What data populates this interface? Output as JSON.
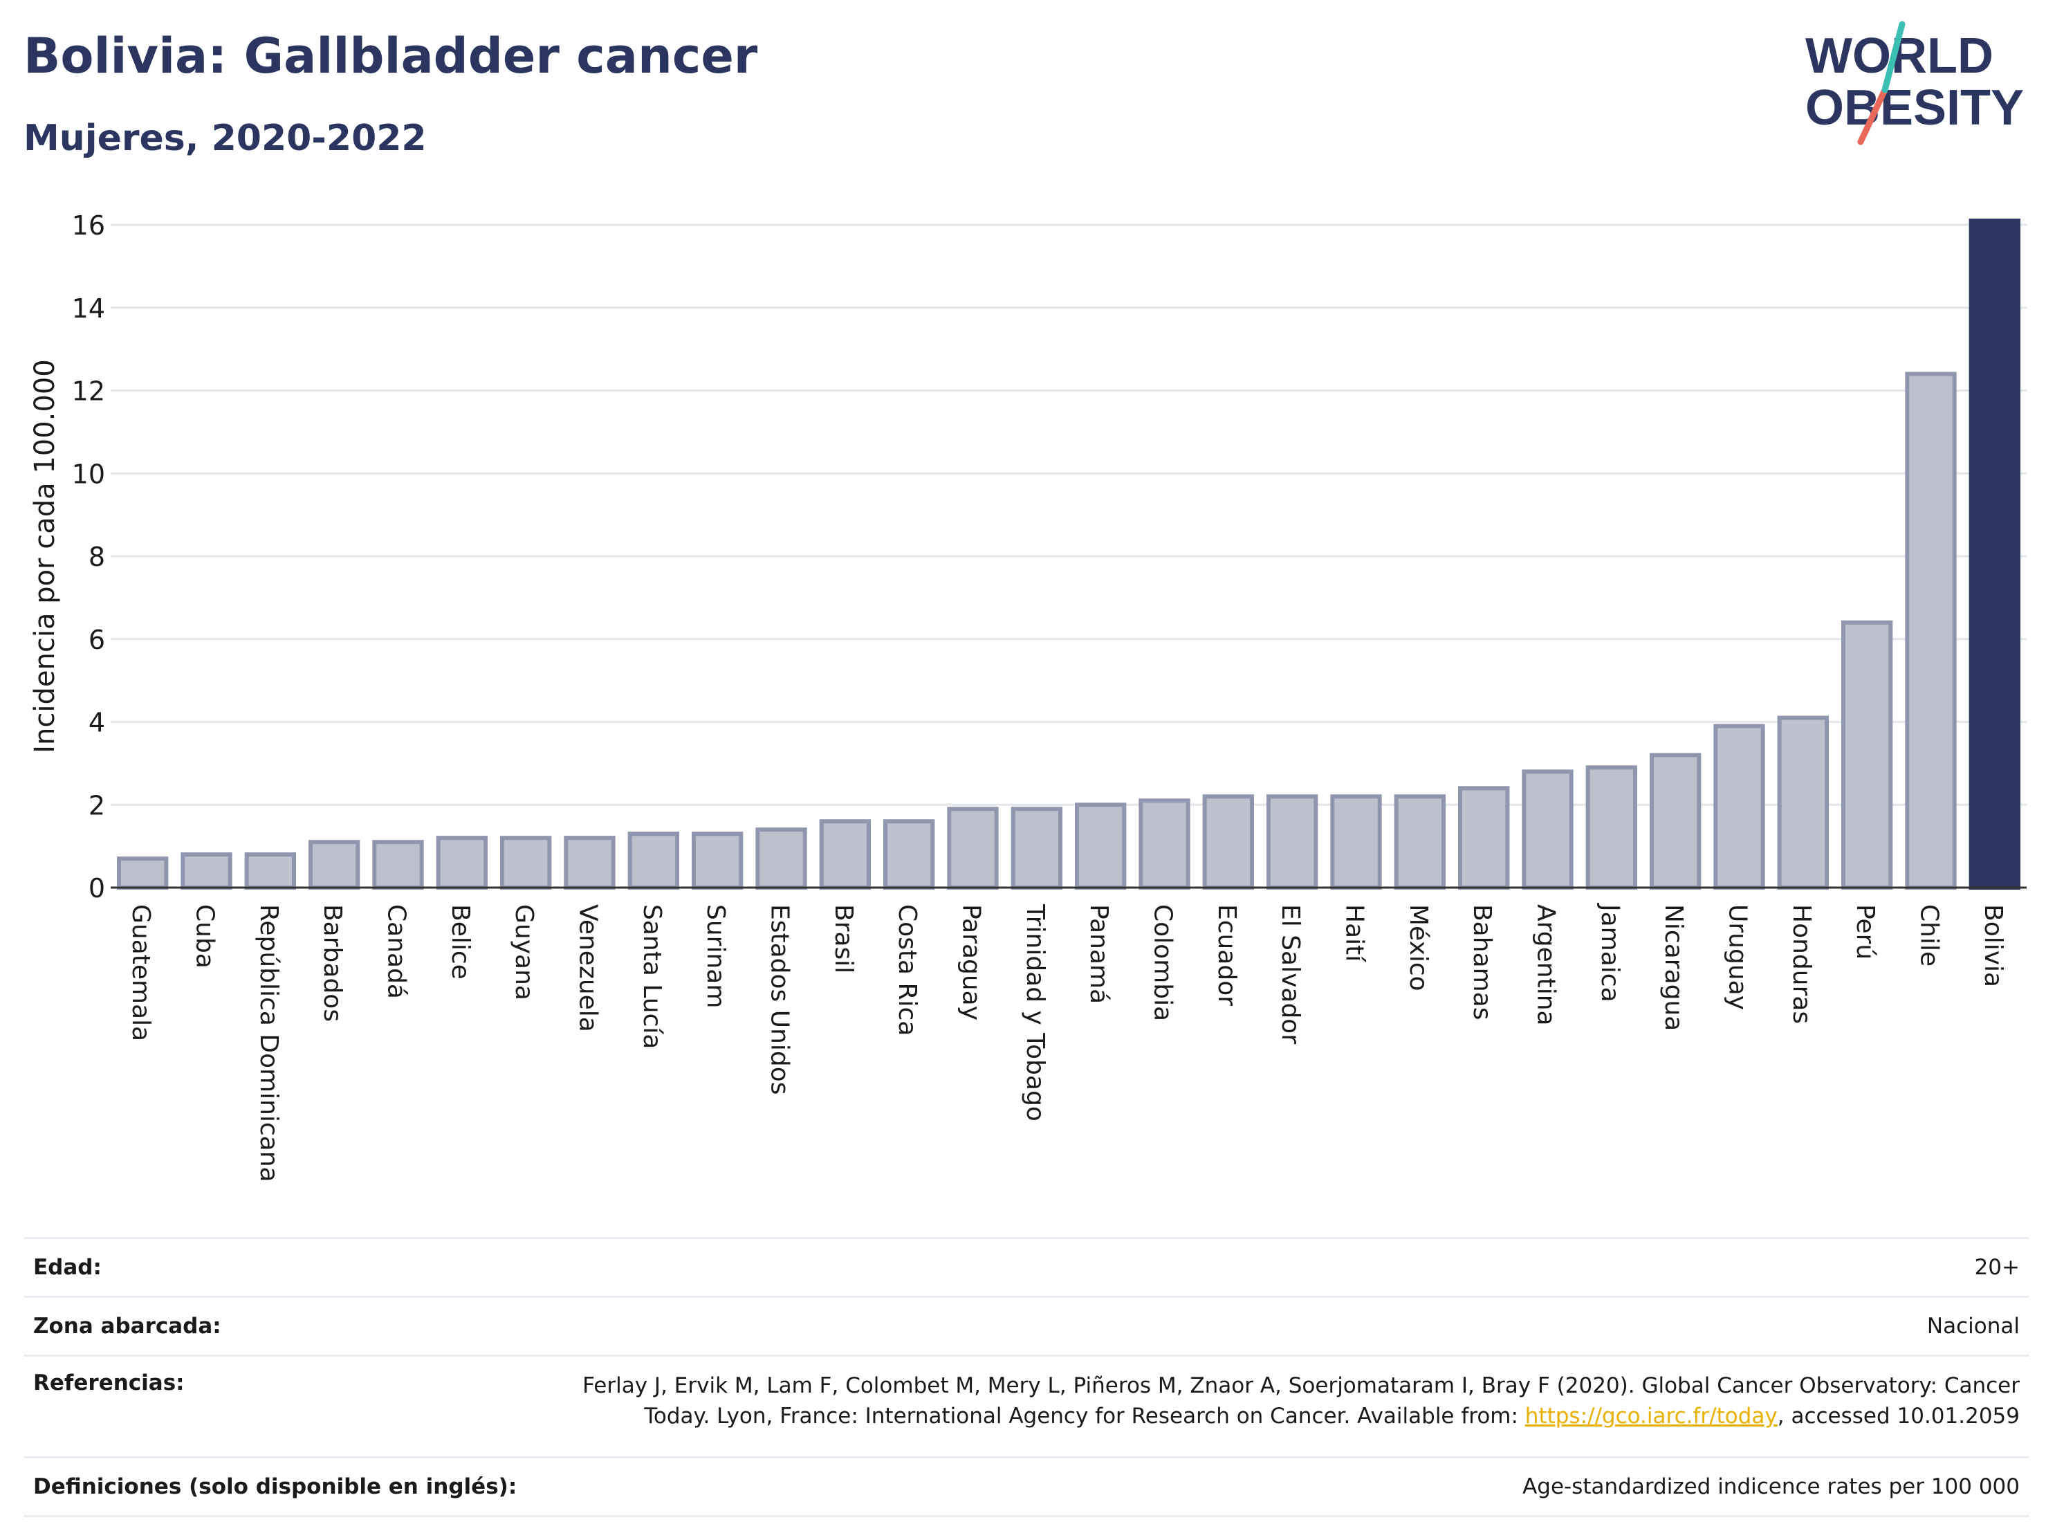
{
  "title": "Bolivia: Gallbladder cancer",
  "subtitle": "Mujeres, 2020-2022",
  "logo": {
    "line1": "WORLD",
    "line2": "OBESITY"
  },
  "colors": {
    "highlight": "#2a3560",
    "bar_fill": "#bdc1ce",
    "bar_stroke": "#9096ad",
    "grid": "#e4e6ec",
    "title": "#2a3560",
    "logo_teal": "#3bbfb3",
    "logo_red": "#e8685a",
    "link": "#e8b100"
  },
  "chart_data": {
    "type": "bar",
    "ylabel": "Incidencia por cada 100.000",
    "xlabel": "",
    "ylim": [
      0,
      16
    ],
    "yticks": [
      "0",
      "2",
      "4",
      "6",
      "8",
      "10",
      "12",
      "14",
      "16"
    ],
    "grid": true,
    "highlight_category": "Bolivia",
    "categories": [
      "Guatemala",
      "Cuba",
      "República Dominicana",
      "Barbados",
      "Canadá",
      "Belice",
      "Guyana",
      "Venezuela",
      "Santa Lucía",
      "Surinam",
      "Estados Unidos",
      "Brasil",
      "Costa Rica",
      "Paraguay",
      "Trinidad y Tobago",
      "Panamá",
      "Colombia",
      "Ecuador",
      "El Salvador",
      "Haití",
      "México",
      "Bahamas",
      "Argentina",
      "Jamaica",
      "Nicaragua",
      "Uruguay",
      "Honduras",
      "Perú",
      "Chile",
      "Bolivia"
    ],
    "values": [
      0.7,
      0.8,
      0.8,
      1.1,
      1.1,
      1.2,
      1.2,
      1.2,
      1.3,
      1.3,
      1.4,
      1.6,
      1.6,
      1.9,
      1.9,
      2.0,
      2.1,
      2.2,
      2.2,
      2.2,
      2.2,
      2.4,
      2.8,
      2.9,
      3.2,
      3.9,
      4.1,
      6.4,
      12.4,
      16.1
    ]
  },
  "info": {
    "age_label": "Edad:",
    "age_value": "20+",
    "zone_label": "Zona abarcada:",
    "zone_value": "Nacional",
    "refs_label": "Referencias:",
    "refs_text_1": "Ferlay J, Ervik M, Lam F, Colombet M, Mery L, Piñeros M, Znaor A, Soerjomataram I, Bray F (2020). Global Cancer Observatory: Cancer",
    "refs_text_2": "Today. Lyon, France: International Agency for Research on Cancer. Available from: ",
    "refs_link": "https://gco.iarc.fr/today",
    "refs_text_3": ", accessed 10.01.2059",
    "defs_label": "Definiciones (solo disponible en inglés):",
    "defs_value": "Age-standardized indicence rates per 100 000"
  }
}
